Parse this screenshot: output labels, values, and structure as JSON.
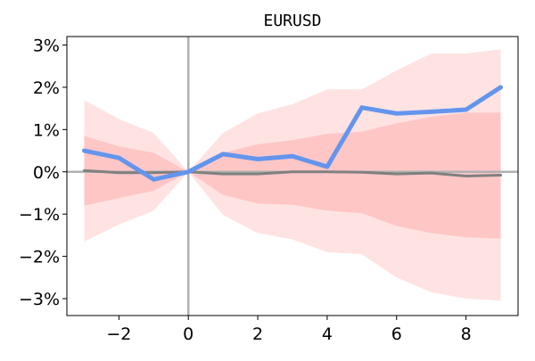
{
  "chart_data": {
    "type": "line",
    "title": "EURUSD",
    "xlabel": "",
    "ylabel": "",
    "xlim": [
      -3.5,
      9.5
    ],
    "ylim": [
      -3.4,
      3.2
    ],
    "x_ticks": [
      -2,
      0,
      2,
      4,
      6,
      8
    ],
    "x_tick_labels": [
      "−2",
      "0",
      "2",
      "4",
      "6",
      "8"
    ],
    "y_ticks": [
      3,
      2,
      1,
      0,
      -1,
      -2,
      -3
    ],
    "y_tick_labels": [
      "3%",
      "2%",
      "1%",
      "0%",
      "−1%",
      "−2%",
      "−3%"
    ],
    "y_unit": "%",
    "grid": false,
    "x": [
      -3,
      -2,
      -1,
      0,
      1,
      2,
      3,
      4,
      5,
      6,
      7,
      8,
      9
    ],
    "series": [
      {
        "kind": "band",
        "role": "outer",
        "color": "#ffcccc",
        "upper": [
          1.7,
          1.25,
          0.92,
          0.0,
          0.92,
          1.38,
          1.6,
          1.95,
          1.95,
          2.4,
          2.8,
          2.8,
          2.9
        ],
        "lower": [
          -1.65,
          -1.25,
          -0.92,
          0.0,
          -1.02,
          -1.45,
          -1.6,
          -1.9,
          -1.95,
          -2.5,
          -2.85,
          -3.0,
          -3.05
        ]
      },
      {
        "kind": "band",
        "role": "inner",
        "color": "#ffb3b3",
        "upper": [
          0.85,
          0.6,
          0.45,
          0.0,
          0.45,
          0.65,
          0.75,
          0.9,
          0.95,
          1.15,
          1.3,
          1.4,
          1.4
        ],
        "lower": [
          -0.8,
          -0.62,
          -0.45,
          0.0,
          -0.55,
          -0.75,
          -0.78,
          -0.92,
          -0.98,
          -1.28,
          -1.45,
          -1.55,
          -1.58
        ]
      },
      {
        "kind": "line",
        "role": "median",
        "color": "#808080",
        "values": [
          0.03,
          -0.02,
          -0.02,
          0.0,
          -0.05,
          -0.05,
          0.0,
          0.0,
          -0.01,
          -0.05,
          -0.03,
          -0.1,
          -0.08
        ]
      },
      {
        "kind": "line",
        "role": "actual",
        "color": "#6495ed",
        "values": [
          0.5,
          0.33,
          -0.18,
          0.0,
          0.42,
          0.3,
          0.37,
          0.12,
          1.52,
          1.38,
          1.42,
          1.47,
          2.0
        ]
      }
    ],
    "reference_lines": {
      "horizontal_at": 0,
      "vertical_at": 0,
      "color": "#b0b0b0"
    }
  }
}
